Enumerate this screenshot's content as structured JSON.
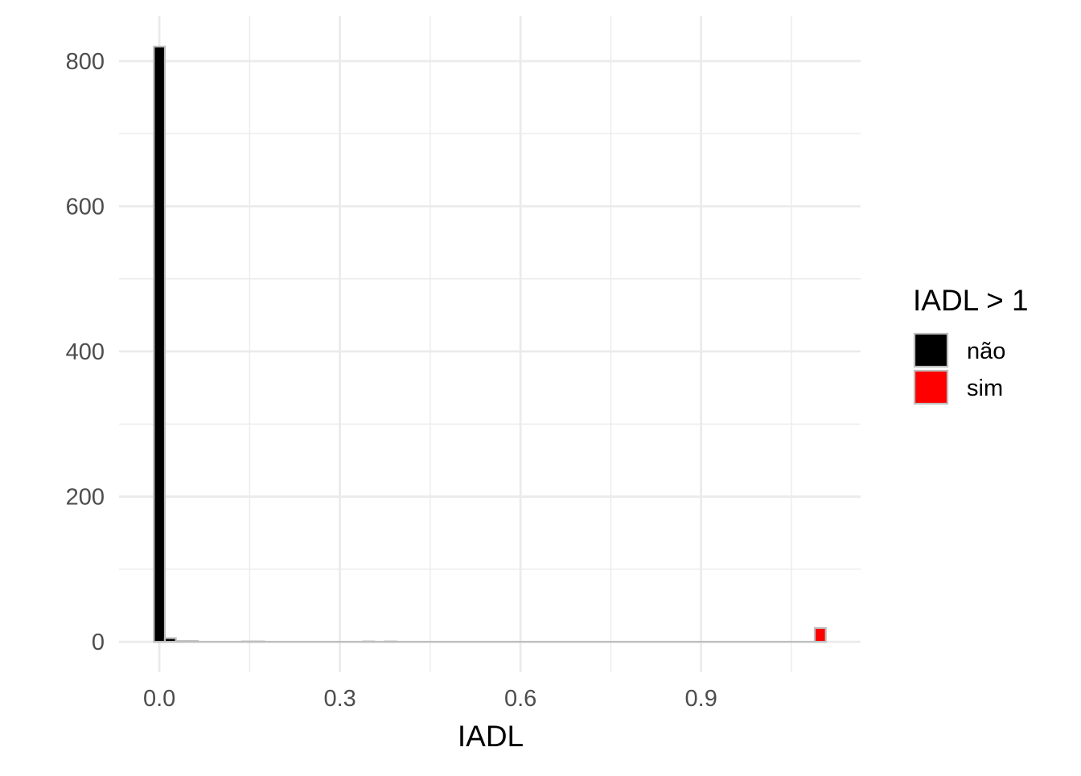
{
  "chart_data": {
    "type": "bar",
    "title": "",
    "xlabel": "IADL",
    "ylabel": "",
    "xlim": [
      -0.067,
      1.165
    ],
    "ylim": [
      -42,
      862
    ],
    "x_ticks": [
      0.0,
      0.3,
      0.6,
      0.9
    ],
    "x_tick_labels": [
      "0.0",
      "0.3",
      "0.6",
      "0.9"
    ],
    "y_ticks": [
      0,
      200,
      400,
      600,
      800
    ],
    "y_tick_labels": [
      "0",
      "200",
      "400",
      "600",
      "800"
    ],
    "grid": true,
    "bin_width": 0.0183,
    "legend": {
      "title": "IADL > 1",
      "placement": "right",
      "entries": [
        {
          "label": "não",
          "color": "#000000"
        },
        {
          "label": "sim",
          "color": "#FF0000"
        }
      ]
    },
    "bar_outline_color": "#BEBEBE",
    "series": [
      {
        "name": "não",
        "color": "#000000",
        "bins": [
          {
            "x": 0.0,
            "count": 820
          },
          {
            "x": 0.0183,
            "count": 5
          },
          {
            "x": 0.0366,
            "count": 1
          },
          {
            "x": 0.0549,
            "count": 1
          },
          {
            "x": 0.1464,
            "count": 0.5
          },
          {
            "x": 0.1647,
            "count": 0.5
          },
          {
            "x": 0.3477,
            "count": 0.5
          },
          {
            "x": 0.3843,
            "count": 0.5
          }
        ]
      },
      {
        "name": "sim",
        "color": "#FF0000",
        "bins": [
          {
            "x": 1.098,
            "count": 19
          }
        ]
      }
    ]
  }
}
